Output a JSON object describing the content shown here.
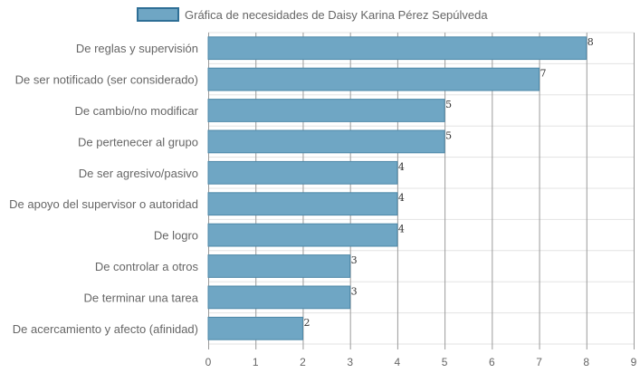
{
  "colors": {
    "bar_fill": "#6fa6c4",
    "bar_stroke": "#4d88a8",
    "legend_fill": "#6fa6c4",
    "legend_stroke": "#2f6f96",
    "grid_vertical": "#9a9a9a",
    "grid_horizontal": "#e3e3e3",
    "text": "#666666"
  },
  "chart_data": {
    "type": "bar",
    "orientation": "horizontal",
    "series": [
      {
        "name": "Gráfica de necesidades de Daisy Karina Pérez Sepúlveda",
        "values": [
          8,
          7,
          5,
          5,
          4,
          4,
          4,
          3,
          3,
          2
        ]
      }
    ],
    "categories": [
      "De reglas y supervisión",
      "De ser notificado (ser considerado)",
      "De cambio/no modificar",
      "De pertenecer al grupo",
      "De ser agresivo/pasivo",
      "De apoyo del supervisor o autoridad",
      "De logro",
      "De controlar a otros",
      "De terminar una tarea",
      "De acercamiento y afecto (afinidad)"
    ],
    "x_ticks": [
      "0",
      "1",
      "2",
      "3",
      "4",
      "5",
      "6",
      "7",
      "8",
      "9"
    ],
    "xlim": [
      0,
      9
    ],
    "grid": true,
    "legend_position": "top-center",
    "data_labels": true
  }
}
